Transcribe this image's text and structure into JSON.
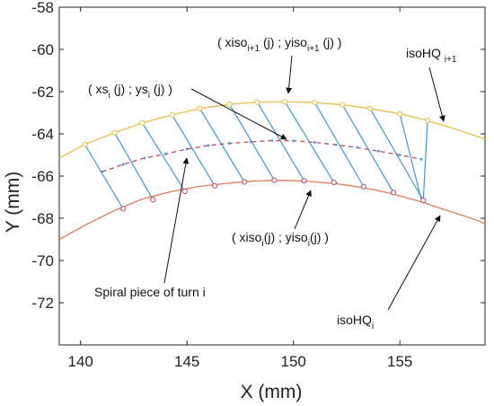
{
  "chart_data": {
    "type": "line",
    "xlabel": "X (mm)",
    "ylabel": "Y (mm)",
    "xlim": [
      139,
      159
    ],
    "ylim": [
      -74,
      -58
    ],
    "x_ticks": [
      140,
      145,
      150,
      155
    ],
    "y_ticks": [
      -58,
      -60,
      -62,
      -64,
      -66,
      -68,
      -70,
      -72
    ],
    "grid": false,
    "colors": {
      "outer": "#e8c04a",
      "inner": "#e27a58",
      "spiral": "#c0486b",
      "segments": "#3f97d8"
    },
    "series": [
      {
        "key": "outer",
        "x": [
          139,
          140.2,
          141.6,
          142.9,
          144.3,
          145.6,
          147,
          148.3,
          149.6,
          151,
          152.3,
          153.6,
          155,
          156.3,
          157.6,
          159
        ],
        "y": [
          -65.15,
          -64.5,
          -63.95,
          -63.48,
          -63.1,
          -62.8,
          -62.6,
          -62.5,
          -62.48,
          -62.52,
          -62.62,
          -62.8,
          -63.05,
          -63.37,
          -63.77,
          -64.25
        ]
      },
      {
        "key": "inner",
        "x": [
          139,
          140.3,
          141.6,
          142.9,
          144.2,
          145.5,
          146.8,
          148.1,
          149.4,
          150.7,
          152,
          153.3,
          154.6,
          155.9,
          157.2,
          158.5,
          159
        ],
        "y": [
          -69,
          -68.28,
          -67.63,
          -67.09,
          -66.75,
          -66.5,
          -66.35,
          -66.24,
          -66.2,
          -66.25,
          -66.36,
          -66.55,
          -66.83,
          -67.19,
          -67.62,
          -68.05,
          -68.25
        ]
      },
      {
        "key": "spiral",
        "x": [
          141,
          142,
          143,
          144,
          145,
          146,
          147,
          148,
          149,
          150,
          151,
          152,
          153,
          154,
          155,
          156
        ],
        "y": [
          -65.8,
          -65.45,
          -65.15,
          -64.95,
          -64.72,
          -64.55,
          -64.45,
          -64.38,
          -64.32,
          -64.33,
          -64.4,
          -64.52,
          -64.65,
          -64.82,
          -65,
          -65.2
        ]
      }
    ],
    "outer_points": {
      "x": [
        140.2,
        141.6,
        142.9,
        144.3,
        145.6,
        147,
        148.3,
        149.6,
        151,
        152.3,
        153.6,
        155,
        156.3
      ],
      "y": [
        -64.5,
        -63.95,
        -63.48,
        -63.1,
        -62.8,
        -62.6,
        -62.5,
        -62.48,
        -62.52,
        -62.62,
        -62.8,
        -63.05,
        -63.37
      ]
    },
    "inner_points": {
      "x": [
        142,
        143.4,
        144.9,
        146.3,
        147.7,
        149.1,
        150.5,
        151.9,
        153.3,
        154.7,
        156.1
      ],
      "y": [
        -67.55,
        -67.12,
        -66.72,
        -66.46,
        -66.28,
        -66.2,
        -66.22,
        -66.3,
        -66.5,
        -66.78,
        -67.15
      ]
    },
    "segments": [
      [
        [
          140.2,
          -64.5
        ],
        [
          142,
          -67.55
        ]
      ],
      [
        [
          141.6,
          -63.95
        ],
        [
          143.4,
          -67.12
        ]
      ],
      [
        [
          142.9,
          -63.48
        ],
        [
          144.9,
          -66.72
        ]
      ],
      [
        [
          144.3,
          -63.1
        ],
        [
          146.3,
          -66.46
        ]
      ],
      [
        [
          145.6,
          -62.8
        ],
        [
          147.7,
          -66.28
        ]
      ],
      [
        [
          147,
          -62.6
        ],
        [
          149.1,
          -66.2
        ]
      ],
      [
        [
          148.3,
          -62.5
        ],
        [
          150.5,
          -66.22
        ]
      ],
      [
        [
          149.6,
          -62.48
        ],
        [
          151.9,
          -66.3
        ]
      ],
      [
        [
          151,
          -62.52
        ],
        [
          153.3,
          -66.5
        ]
      ],
      [
        [
          152.3,
          -62.62
        ],
        [
          154.7,
          -66.78
        ]
      ],
      [
        [
          153.6,
          -62.8
        ],
        [
          156.1,
          -67.15
        ]
      ],
      [
        [
          155,
          -63.05
        ],
        [
          156,
          -67.1
        ]
      ],
      [
        [
          156.3,
          -63.37
        ],
        [
          156.1,
          -67.15
        ]
      ]
    ]
  },
  "annotations": {
    "top_label": {
      "a": "( xiso",
      "a_sub": "i+1",
      "b": " (j) ; yiso",
      "b_sub": "i+1",
      "c": " (j) )"
    },
    "iso_top": {
      "a": "isoHQ ",
      "a_sub": "i+1"
    },
    "spiral_point": {
      "a": "( xs",
      "a_sub": "i",
      "b": " (j) ; ys",
      "b_sub": "i",
      "c": " (j) )"
    },
    "spiral_piece": {
      "a": "Spiral piece of turn i"
    },
    "inner_label": {
      "a": "( xiso",
      "a_sub": "i",
      "b": "(j) ; yiso",
      "b_sub": "i",
      "c": "(j) )"
    },
    "iso_bottom": {
      "a": "isoHQ",
      "a_sub": "i"
    }
  }
}
